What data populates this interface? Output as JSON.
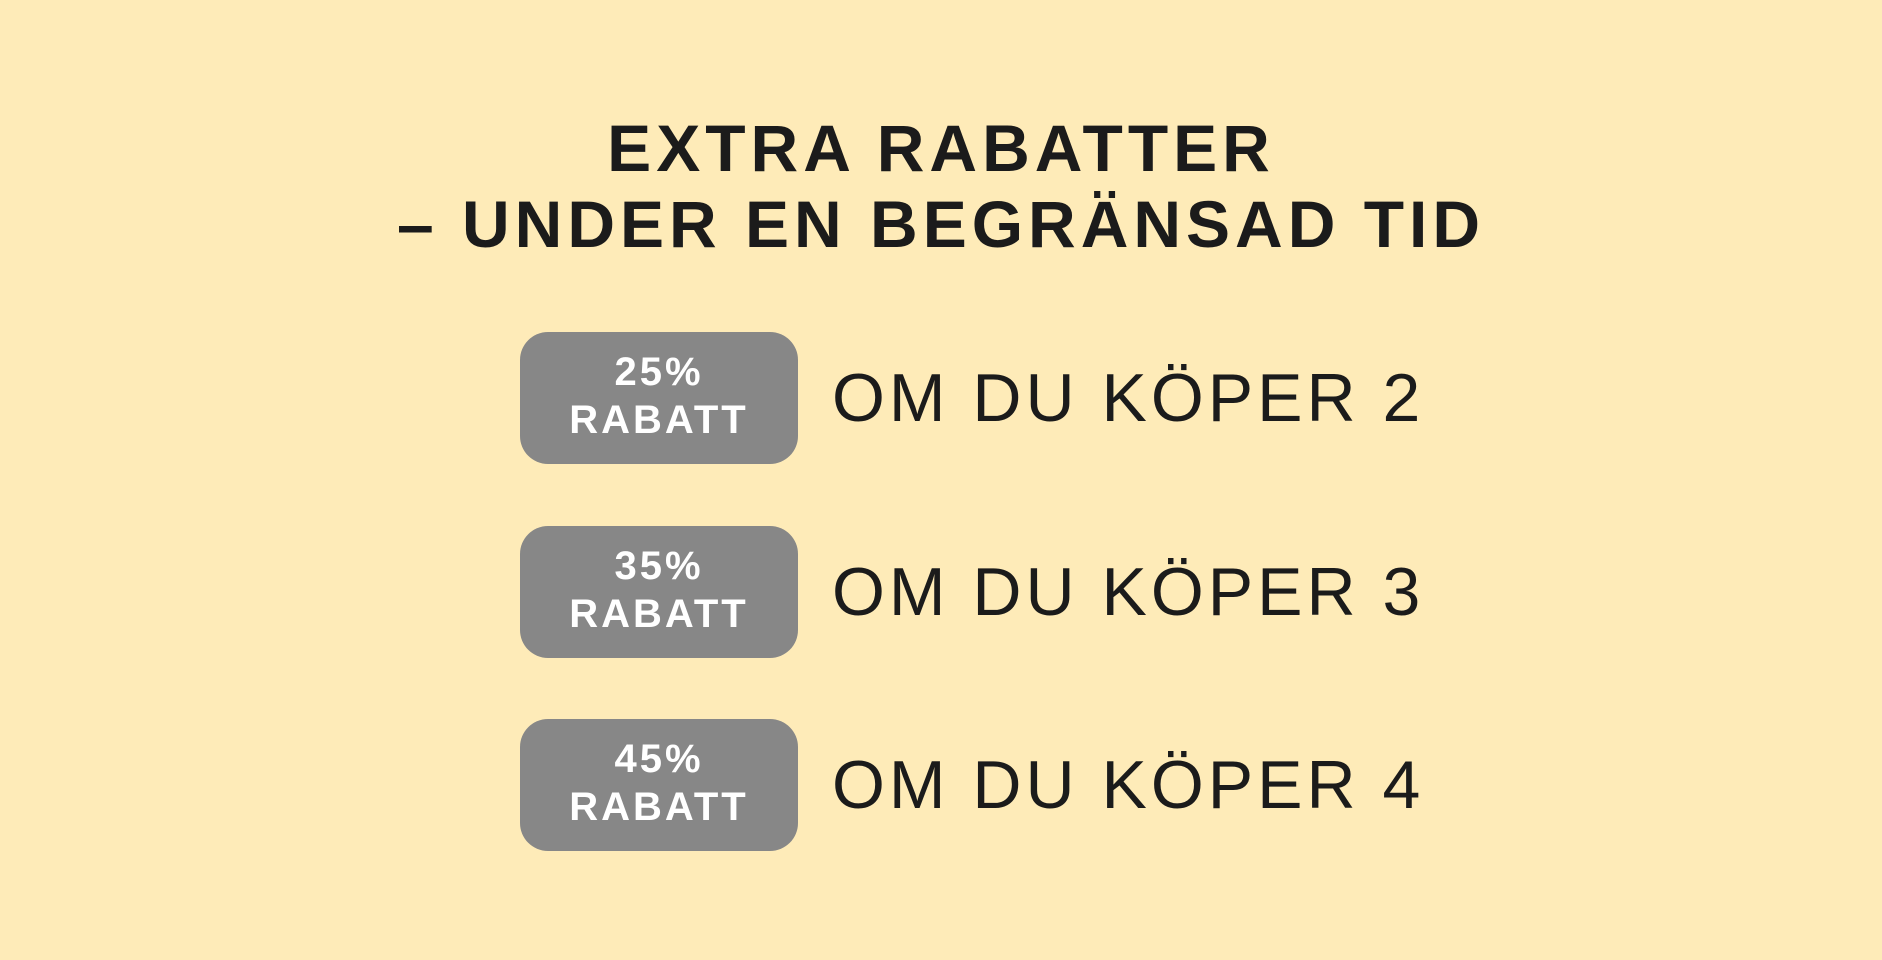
{
  "colors": {
    "background": "#feebb8",
    "badge": "#878787",
    "text": "#1b1b1b",
    "badge_text": "#ffffff"
  },
  "heading": {
    "line1": "EXTRA RABATTER",
    "line2": "– UNDER EN BEGRÄNSAD TID"
  },
  "offers": [
    {
      "percent": "25%",
      "label": "RABATT",
      "condition": "OM DU KÖPER 2"
    },
    {
      "percent": "35%",
      "label": "RABATT",
      "condition": "OM DU KÖPER 3"
    },
    {
      "percent": "45%",
      "label": "RABATT",
      "condition": "OM DU KÖPER 4"
    }
  ]
}
